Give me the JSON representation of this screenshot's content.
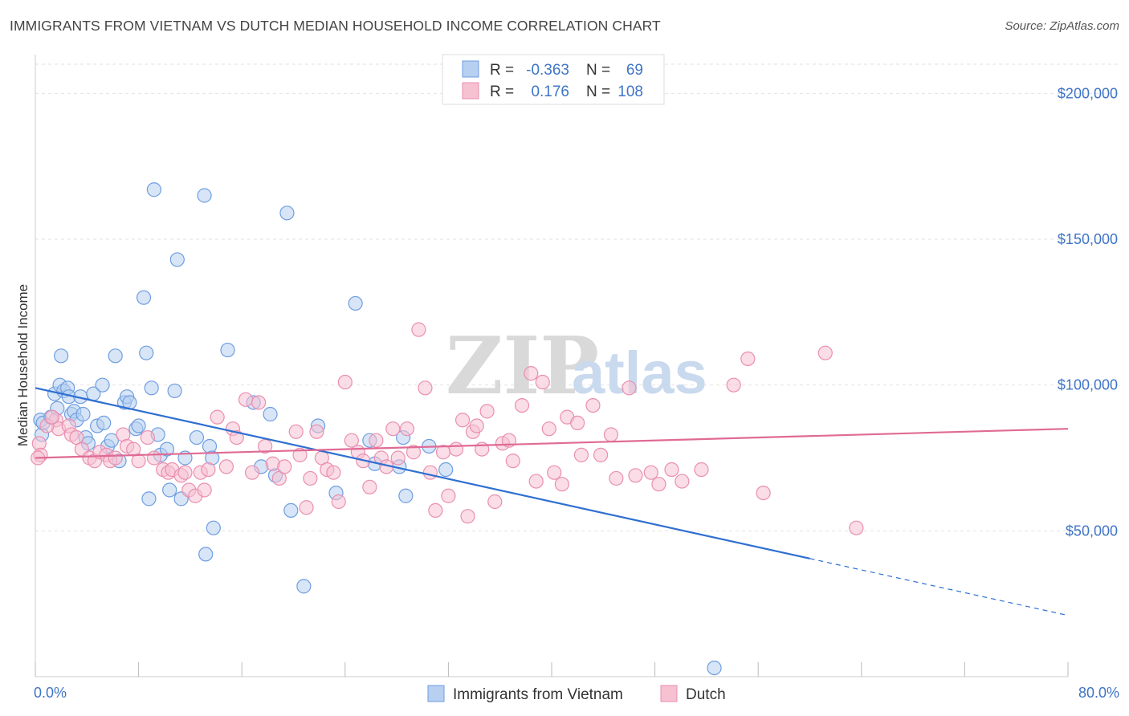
{
  "title": "IMMIGRANTS FROM VIETNAM VS DUTCH MEDIAN HOUSEHOLD INCOME CORRELATION CHART",
  "source": "Source: ZipAtlas.com",
  "watermark": {
    "part1": "ZIP",
    "part2": "atlas"
  },
  "colors": {
    "blue_fill": "#b7cff0",
    "blue_stroke": "#6f9ee0",
    "blue_line": "#2f6fd1",
    "pink_fill": "#f6c1d1",
    "pink_stroke": "#ea8fb0",
    "pink_line": "#e06a95",
    "grid": "#e2e2e2",
    "axis_text": "#3f74c6"
  },
  "legend": {
    "rows": [
      {
        "r_label": "R =",
        "r_value": "-0.363",
        "n_label": "N =",
        "n_value": "69",
        "series": "blue"
      },
      {
        "r_label": "R =",
        "r_value": "0.176",
        "n_label": "N =",
        "n_value": "108",
        "series": "pink"
      }
    ]
  },
  "bottom_legend": [
    {
      "label": "Immigrants from Vietnam",
      "series": "blue"
    },
    {
      "label": "Dutch",
      "series": "pink"
    }
  ],
  "chart_data": {
    "type": "scatter",
    "title": "IMMIGRANTS FROM VIETNAM VS DUTCH MEDIAN HOUSEHOLD INCOME CORRELATION CHART",
    "xlabel": "",
    "ylabel": "Median Household Income",
    "xlim": [
      0,
      80
    ],
    "ylim": [
      0,
      210000
    ],
    "x_tick_labels": [
      {
        "value": 0,
        "label": "0.0%"
      },
      {
        "value": 80,
        "label": "80.0%"
      }
    ],
    "y_tick_labels": [
      {
        "value": 50000,
        "label": "$50,000"
      },
      {
        "value": 100000,
        "label": "$100,000"
      },
      {
        "value": 150000,
        "label": "$150,000"
      },
      {
        "value": 200000,
        "label": "$200,000"
      }
    ],
    "grid": true,
    "legend_position": "top-center",
    "series": [
      {
        "name": "Immigrants from Vietnam",
        "color": "#6f9ee0",
        "trend": {
          "x": [
            0,
            60
          ],
          "y": [
            99000,
            40500
          ],
          "dashed_to": [
            80,
            21000
          ]
        },
        "points": [
          [
            0.4,
            88000
          ],
          [
            0.5,
            83000
          ],
          [
            0.6,
            87000
          ],
          [
            1.2,
            89000
          ],
          [
            1.5,
            97000
          ],
          [
            1.7,
            92000
          ],
          [
            1.9,
            100000
          ],
          [
            2.0,
            110000
          ],
          [
            2.2,
            98000
          ],
          [
            2.5,
            99000
          ],
          [
            2.6,
            96000
          ],
          [
            2.8,
            90000
          ],
          [
            3.0,
            91000
          ],
          [
            3.2,
            88000
          ],
          [
            3.5,
            96000
          ],
          [
            3.7,
            90000
          ],
          [
            3.9,
            82000
          ],
          [
            4.1,
            80000
          ],
          [
            4.5,
            97000
          ],
          [
            4.8,
            86000
          ],
          [
            5.2,
            100000
          ],
          [
            5.3,
            87000
          ],
          [
            5.6,
            79000
          ],
          [
            5.9,
            81000
          ],
          [
            6.2,
            110000
          ],
          [
            6.5,
            74000
          ],
          [
            6.9,
            94000
          ],
          [
            7.1,
            96000
          ],
          [
            7.3,
            94000
          ],
          [
            7.8,
            85000
          ],
          [
            8.0,
            86000
          ],
          [
            8.4,
            130000
          ],
          [
            8.6,
            111000
          ],
          [
            8.8,
            61000
          ],
          [
            9.0,
            99000
          ],
          [
            9.2,
            167000
          ],
          [
            9.5,
            83000
          ],
          [
            9.7,
            76000
          ],
          [
            10.2,
            78000
          ],
          [
            10.4,
            64000
          ],
          [
            10.8,
            98000
          ],
          [
            11.0,
            143000
          ],
          [
            11.3,
            61000
          ],
          [
            11.6,
            75000
          ],
          [
            12.5,
            82000
          ],
          [
            13.1,
            165000
          ],
          [
            13.2,
            42000
          ],
          [
            13.5,
            79000
          ],
          [
            13.7,
            75000
          ],
          [
            13.8,
            51000
          ],
          [
            14.9,
            112000
          ],
          [
            16.9,
            94000
          ],
          [
            17.5,
            72000
          ],
          [
            18.2,
            90000
          ],
          [
            18.6,
            69000
          ],
          [
            19.5,
            159000
          ],
          [
            19.8,
            57000
          ],
          [
            20.8,
            31000
          ],
          [
            21.9,
            86000
          ],
          [
            23.3,
            63000
          ],
          [
            24.8,
            128000
          ],
          [
            25.9,
            81000
          ],
          [
            26.3,
            73000
          ],
          [
            28.2,
            72000
          ],
          [
            28.5,
            82000
          ],
          [
            28.7,
            62000
          ],
          [
            30.5,
            79000
          ],
          [
            31.8,
            71000
          ],
          [
            52.6,
            3000
          ]
        ]
      },
      {
        "name": "Dutch",
        "color": "#ea8fb0",
        "trend": {
          "x": [
            0,
            80
          ],
          "y": [
            75000,
            85000
          ]
        },
        "points": [
          [
            0.3,
            80000
          ],
          [
            0.4,
            76000
          ],
          [
            1.6,
            88000
          ],
          [
            1.8,
            85000
          ],
          [
            2.6,
            86000
          ],
          [
            2.8,
            83000
          ],
          [
            3.2,
            82000
          ],
          [
            3.6,
            78000
          ],
          [
            4.2,
            75000
          ],
          [
            4.6,
            74000
          ],
          [
            5.0,
            77000
          ],
          [
            5.5,
            76000
          ],
          [
            5.8,
            74000
          ],
          [
            6.2,
            75000
          ],
          [
            6.8,
            83000
          ],
          [
            7.1,
            79000
          ],
          [
            7.6,
            78000
          ],
          [
            8.0,
            74000
          ],
          [
            8.7,
            82000
          ],
          [
            9.2,
            75000
          ],
          [
            9.9,
            71000
          ],
          [
            10.3,
            70000
          ],
          [
            10.6,
            71000
          ],
          [
            11.3,
            69000
          ],
          [
            11.6,
            70000
          ],
          [
            11.9,
            64000
          ],
          [
            12.4,
            62000
          ],
          [
            12.8,
            70000
          ],
          [
            13.1,
            64000
          ],
          [
            13.4,
            71000
          ],
          [
            14.1,
            89000
          ],
          [
            14.8,
            72000
          ],
          [
            15.3,
            85000
          ],
          [
            15.6,
            82000
          ],
          [
            16.3,
            95000
          ],
          [
            16.8,
            70000
          ],
          [
            17.3,
            94000
          ],
          [
            17.8,
            79000
          ],
          [
            18.4,
            73000
          ],
          [
            18.9,
            68000
          ],
          [
            19.3,
            72000
          ],
          [
            20.2,
            84000
          ],
          [
            20.5,
            76000
          ],
          [
            21.0,
            58000
          ],
          [
            21.3,
            68000
          ],
          [
            21.8,
            84000
          ],
          [
            22.2,
            75000
          ],
          [
            22.6,
            71000
          ],
          [
            23.1,
            70000
          ],
          [
            23.5,
            60000
          ],
          [
            24.0,
            101000
          ],
          [
            24.5,
            81000
          ],
          [
            25.0,
            77000
          ],
          [
            25.4,
            74000
          ],
          [
            25.9,
            65000
          ],
          [
            26.4,
            81000
          ],
          [
            26.8,
            75000
          ],
          [
            27.2,
            72000
          ],
          [
            27.7,
            85000
          ],
          [
            28.1,
            75000
          ],
          [
            28.8,
            85000
          ],
          [
            29.3,
            77000
          ],
          [
            29.7,
            119000
          ],
          [
            30.2,
            99000
          ],
          [
            30.6,
            70000
          ],
          [
            31.0,
            57000
          ],
          [
            31.6,
            77000
          ],
          [
            32.0,
            62000
          ],
          [
            32.6,
            78000
          ],
          [
            33.1,
            88000
          ],
          [
            33.5,
            55000
          ],
          [
            33.9,
            84000
          ],
          [
            34.2,
            86000
          ],
          [
            34.6,
            78000
          ],
          [
            35.0,
            91000
          ],
          [
            35.6,
            60000
          ],
          [
            36.2,
            80000
          ],
          [
            36.7,
            81000
          ],
          [
            37.0,
            74000
          ],
          [
            37.7,
            93000
          ],
          [
            38.4,
            104000
          ],
          [
            38.8,
            67000
          ],
          [
            39.3,
            101000
          ],
          [
            39.8,
            85000
          ],
          [
            40.2,
            70000
          ],
          [
            40.8,
            66000
          ],
          [
            41.2,
            89000
          ],
          [
            42.0,
            87000
          ],
          [
            42.3,
            76000
          ],
          [
            43.2,
            93000
          ],
          [
            43.8,
            76000
          ],
          [
            44.6,
            83000
          ],
          [
            45.0,
            68000
          ],
          [
            46.0,
            99000
          ],
          [
            46.5,
            69000
          ],
          [
            47.7,
            70000
          ],
          [
            48.3,
            66000
          ],
          [
            49.3,
            71000
          ],
          [
            50.1,
            67000
          ],
          [
            51.6,
            71000
          ],
          [
            54.1,
            100000
          ],
          [
            55.2,
            109000
          ],
          [
            56.4,
            63000
          ],
          [
            61.2,
            111000
          ],
          [
            63.6,
            51000
          ],
          [
            0.2,
            75000
          ],
          [
            0.9,
            86000
          ],
          [
            1.3,
            89000
          ]
        ]
      }
    ]
  }
}
